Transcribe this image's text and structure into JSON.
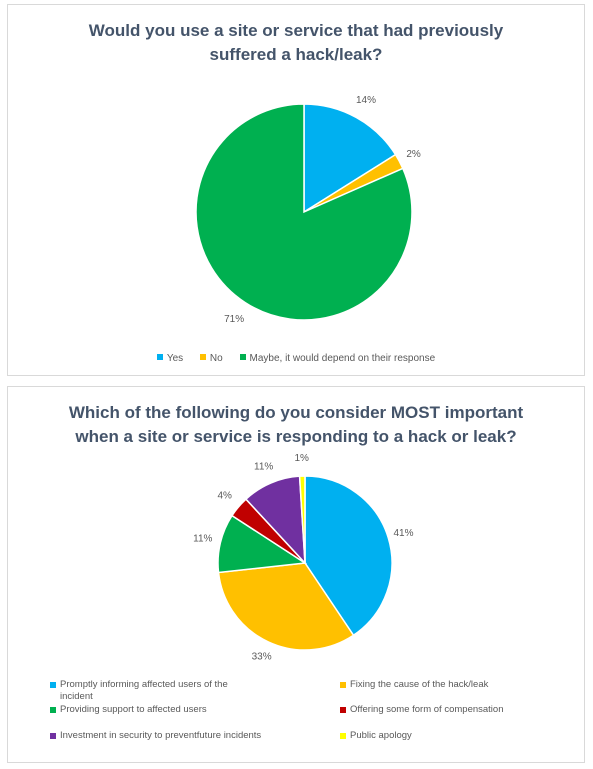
{
  "chart_data": [
    {
      "type": "pie",
      "title": "Would you use a site or service that had previously suffered a hack/leak?",
      "title_lines": [
        "Would you use a site or service that had previously",
        "suffered a hack/leak?"
      ],
      "slices": [
        {
          "name": "Yes",
          "value": 14,
          "label": "14%",
          "color": "#00b0f0"
        },
        {
          "name": "No",
          "value": 2,
          "label": "2%",
          "color": "#ffc000"
        },
        {
          "name": "Maybe, it would depend on their response",
          "value": 71,
          "label": "71%",
          "color": "#00b050"
        }
      ],
      "legend_position": "bottom"
    },
    {
      "type": "pie",
      "title": "Which of the following do you consider MOST important when a site or service is responding to a hack or leak?",
      "title_lines": [
        "Which of the following do you consider MOST important",
        "when a site or service is responding to a hack or leak?"
      ],
      "slices": [
        {
          "name": "Promptly informing affected users of the incident",
          "value": 41,
          "label": "41%",
          "color": "#00b0f0"
        },
        {
          "name": "Fixing the cause of the hack/leak",
          "value": 33,
          "label": "33%",
          "color": "#ffc000"
        },
        {
          "name": "Providing support to affected users",
          "value": 11,
          "label": "11%",
          "color": "#00b050"
        },
        {
          "name": "Offering some form of compensation",
          "value": 4,
          "label": "4%",
          "color": "#c00000"
        },
        {
          "name": "Investment in security to preventfuture incidents",
          "value": 11,
          "label": "11%",
          "color": "#7030a0"
        },
        {
          "name": "Public apology",
          "value": 1,
          "label": "1%",
          "color": "#ffff00"
        }
      ],
      "legend_position": "bottom"
    }
  ]
}
